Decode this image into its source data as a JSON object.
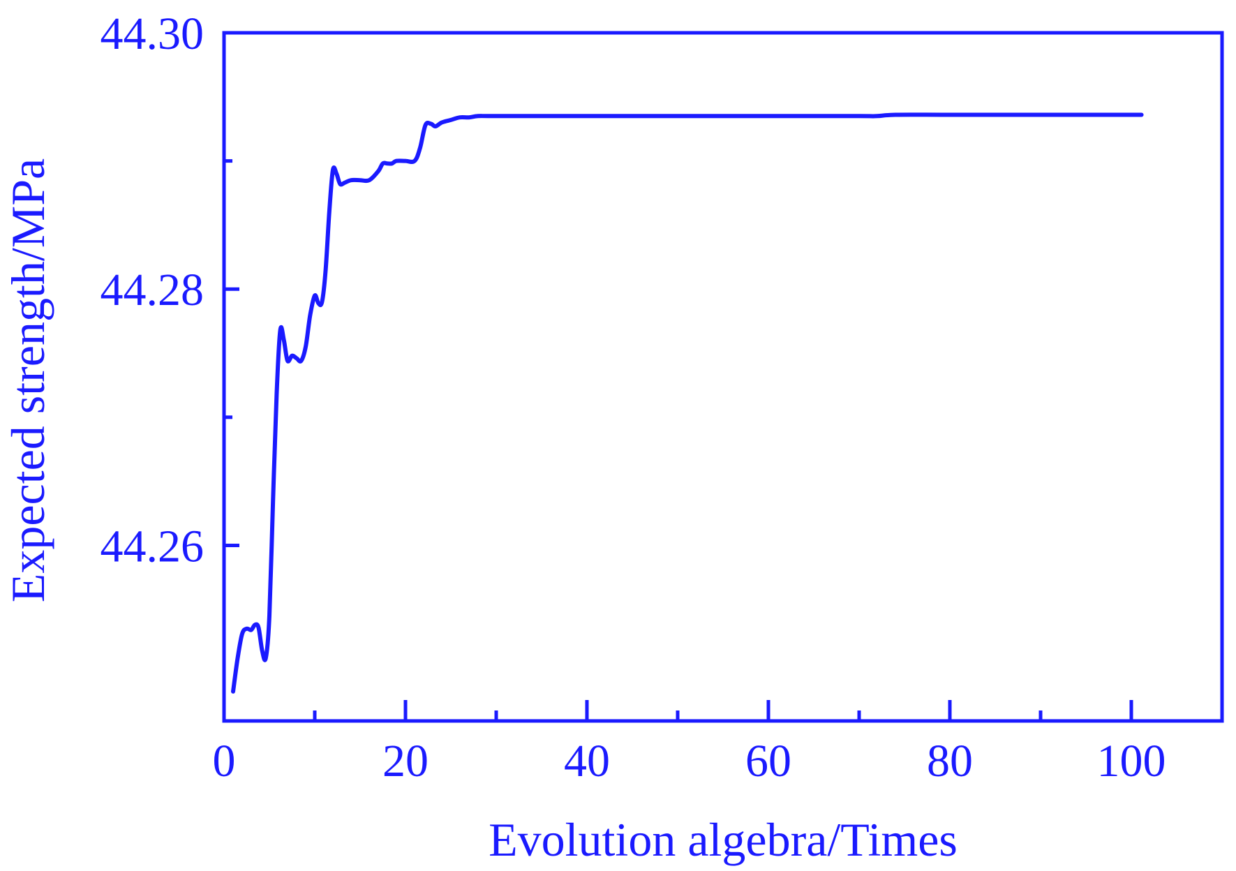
{
  "chart_data": {
    "type": "line",
    "title": "",
    "xlabel": "Evolution algebra/Times",
    "ylabel": "Expected strength/MPa",
    "xlim": [
      0,
      110
    ],
    "ylim": [
      44.2463,
      44.3
    ],
    "x_major_ticks": [
      0,
      20,
      40,
      60,
      80,
      100
    ],
    "x_minor_ticks": [
      10,
      30,
      50,
      70,
      90
    ],
    "y_major_ticks": [
      44.26,
      44.28,
      44.3
    ],
    "y_minor_ticks": [
      44.27,
      44.29
    ],
    "x_tick_labels": [
      "0",
      "20",
      "40",
      "60",
      "80",
      "100"
    ],
    "y_tick_labels": [
      "44.26",
      "44.28",
      "44.30"
    ],
    "grid": false,
    "legend": "none",
    "color": "#1a1aff",
    "series": [
      {
        "x": [
          1,
          1.5,
          2,
          2.5,
          3,
          3.4,
          3.8,
          4.2,
          4.6,
          5,
          5.4,
          5.8,
          6.2,
          6.6,
          7,
          7.5,
          8,
          8.5,
          9,
          9.5,
          10,
          10.4,
          10.8,
          11.2,
          11.6,
          12,
          12.4,
          12.8,
          13.3,
          14,
          15,
          16,
          17,
          17.5,
          18,
          18.5,
          19,
          20,
          21,
          21.6,
          22.2,
          22.8,
          23.3,
          24,
          25,
          26,
          27,
          28,
          30,
          40,
          50,
          60,
          70,
          72,
          74,
          80,
          90,
          100,
          101
        ],
        "y": [
          44.2486,
          44.2512,
          44.2531,
          44.2535,
          44.2534,
          44.2538,
          44.2536,
          44.2518,
          44.2512,
          44.2545,
          44.2635,
          44.2718,
          44.2768,
          44.276,
          44.2744,
          44.2748,
          44.2746,
          44.2744,
          44.2755,
          44.278,
          44.2795,
          44.2789,
          44.279,
          44.2815,
          44.286,
          44.2893,
          44.289,
          44.2882,
          44.2883,
          44.2885,
          44.2885,
          44.2885,
          44.2892,
          44.2898,
          44.2898,
          44.2898,
          44.29,
          44.29,
          44.29,
          44.291,
          44.2928,
          44.2929,
          44.2927,
          44.293,
          44.2932,
          44.2934,
          44.2934,
          44.2935,
          44.2935,
          44.2935,
          44.2935,
          44.2935,
          44.2935,
          44.2935,
          44.2936,
          44.2936,
          44.2936,
          44.2936,
          44.2936
        ]
      }
    ]
  }
}
